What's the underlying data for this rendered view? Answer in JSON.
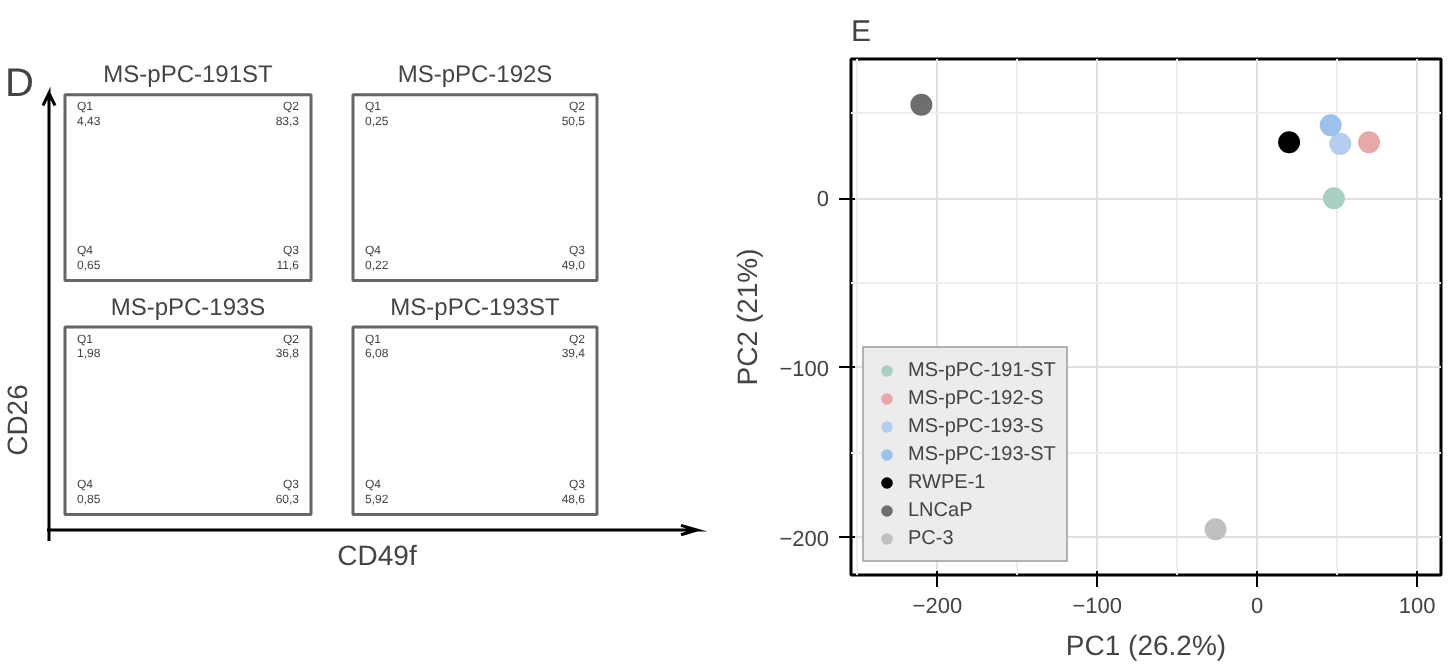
{
  "chart_data": [
    {
      "type": "other",
      "annotations": [
        "D"
      ],
      "xlabel": "CD49f",
      "ylabel": "CD26"
    },
    {
      "type": "other",
      "title": "MS-pPC-191ST",
      "annotations": [
        "Q1\n4,43",
        "Q2\n83,3",
        "Q4\n0,65",
        "Q3\n11,6"
      ]
    },
    {
      "type": "other",
      "title": "MS-pPC-192S",
      "annotations": [
        "Q1\n0,25",
        "Q2\n50,5",
        "Q4\n0,22",
        "Q3\n49,0"
      ]
    },
    {
      "type": "other",
      "title": "MS-pPC-193S",
      "annotations": [
        "Q1\n1,98",
        "Q2\n36,8",
        "Q4\n0,85",
        "Q3\n60,3"
      ]
    },
    {
      "type": "other",
      "title": "MS-pPC-193ST",
      "annotations": [
        "Q1\n6,08",
        "Q2\n39,4",
        "Q4\n5,92",
        "Q3\n48,6"
      ]
    },
    {
      "type": "scatter",
      "title": "E",
      "xlabel": "PC1 (26.2%)",
      "ylabel": "PC2 (21%)",
      "xlim": [
        -254,
        115
      ],
      "ylim": [
        -222,
        82
      ],
      "xticks": [
        -200,
        -100,
        0,
        100
      ],
      "yticks": [
        -200,
        -100,
        0
      ],
      "grid": true,
      "legend": "bottom left",
      "marker": "circle",
      "series": [
        {
          "name": "MS-pPC-191-ST",
          "color": "#a8cfc4",
          "x": [
            48
          ],
          "values": [
            0
          ]
        },
        {
          "name": "MS-pPC-192-S",
          "color": "#e8a8a8",
          "x": [
            70
          ],
          "values": [
            33
          ]
        },
        {
          "name": "MS-pPC-193-S",
          "color": "#b4cdf0",
          "x": [
            52
          ],
          "values": [
            32
          ]
        },
        {
          "name": "MS-pPC-193-ST",
          "color": "#9cc2ec",
          "x": [
            46
          ],
          "values": [
            43
          ]
        },
        {
          "name": "RWPE-1",
          "color": "#000000",
          "x": [
            20
          ],
          "values": [
            33
          ]
        },
        {
          "name": "LNCaP",
          "color": "#6e6e6e",
          "x": [
            -210
          ],
          "values": [
            55
          ]
        },
        {
          "name": "PC-3",
          "color": "#c0c0c0",
          "x": [
            -26
          ],
          "values": [
            -195
          ]
        }
      ]
    }
  ]
}
